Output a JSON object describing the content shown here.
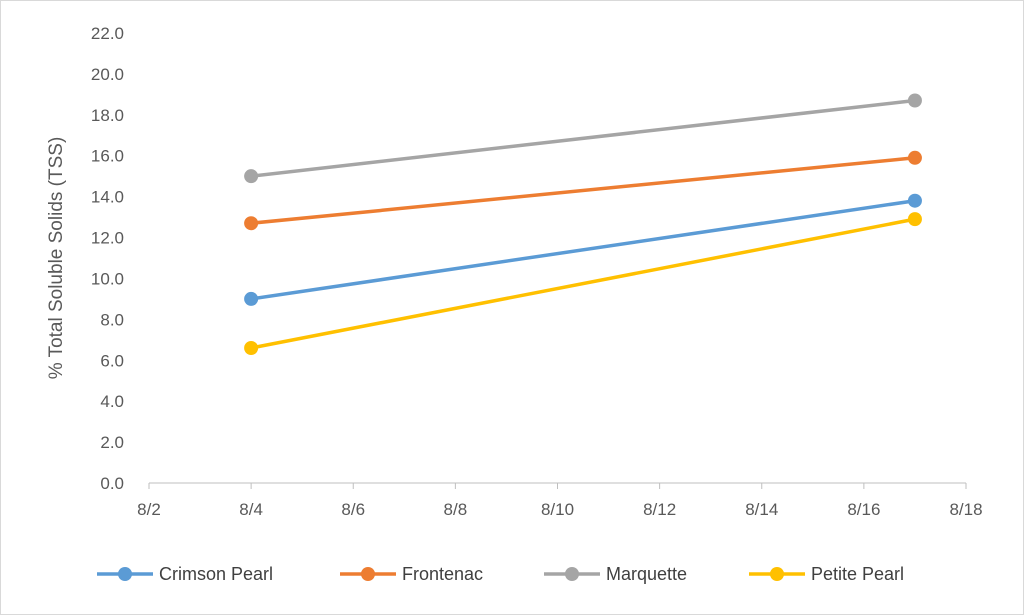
{
  "chart_data": {
    "type": "line",
    "title": "",
    "xlabel": "",
    "ylabel": "% Total Soluble Solids (TSS)",
    "ylim": [
      0,
      22
    ],
    "yticks": [
      "0.0",
      "2.0",
      "4.0",
      "6.0",
      "8.0",
      "10.0",
      "12.0",
      "14.0",
      "16.0",
      "18.0",
      "20.0",
      "22.0"
    ],
    "xlim": [
      "8/2",
      "8/18"
    ],
    "xticks": [
      "8/2",
      "8/4",
      "8/6",
      "8/8",
      "8/10",
      "8/12",
      "8/14",
      "8/16",
      "8/18"
    ],
    "x": [
      "8/4",
      "8/17"
    ],
    "grid": false,
    "legend_position": "bottom",
    "series": [
      {
        "name": "Crimson Pearl",
        "color": "#5b9bd5",
        "values": [
          9.0,
          13.8
        ]
      },
      {
        "name": "Frontenac",
        "color": "#ed7d31",
        "values": [
          12.7,
          15.9
        ]
      },
      {
        "name": "Marquette",
        "color": "#a5a5a5",
        "values": [
          15.0,
          18.7
        ]
      },
      {
        "name": "Petite Pearl",
        "color": "#ffc000",
        "values": [
          6.6,
          12.9
        ]
      }
    ]
  }
}
